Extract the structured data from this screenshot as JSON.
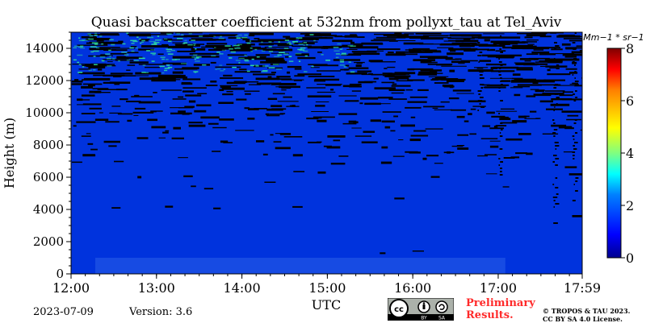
{
  "chart_data": {
    "type": "heatmap",
    "title": "Quasi backscatter coefficient at 532nm from pollyxt_tau at Tel_Aviv",
    "xlabel": "UTC",
    "ylabel": "Height (m)",
    "x_ticks": [
      "12:00",
      "13:00",
      "14:00",
      "15:00",
      "16:00",
      "17:00",
      "17:59"
    ],
    "x_range": [
      "12:00",
      "17:59"
    ],
    "y_ticks": [
      0,
      2000,
      4000,
      6000,
      8000,
      10000,
      12000,
      14000
    ],
    "ylim": [
      0,
      15000
    ],
    "colorbar": {
      "label": "Mm−1 * sr−1",
      "ticks": [
        0,
        2,
        4,
        6,
        8
      ],
      "range": [
        0,
        8
      ],
      "colors": [
        "#00008f",
        "#0000ff",
        "#0080ff",
        "#00ffff",
        "#80ff80",
        "#ffff00",
        "#ff8000",
        "#ff0000",
        "#800000"
      ]
    },
    "field_colors": {
      "background_signal": "#0033dd",
      "missing_data": "#000000",
      "near_surface_layer": "#2a5ee8",
      "upper_noise_speckle": "#30e0a0"
    }
  },
  "footer": {
    "date": "2023-07-09",
    "version": "Version: 3.6",
    "preliminary_line1": "Preliminary",
    "preliminary_line2": "Results.",
    "copyright_line1": "© TROPOS & TAU 2023.",
    "copyright_line2": "CC BY SA 4.0 License.",
    "license_icon": "cc-by-sa-icon"
  }
}
